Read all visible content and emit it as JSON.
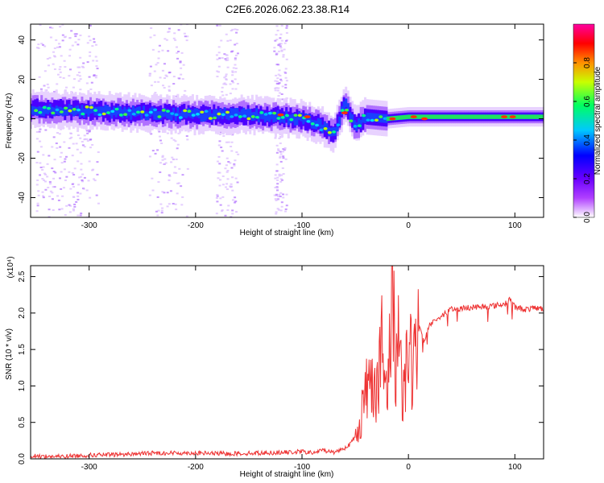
{
  "figure": {
    "title": "C2E6.2026.062.23.38.R14"
  },
  "chart_data": [
    {
      "type": "heatmap",
      "title": "",
      "xlabel": "Height of straight line (km)",
      "ylabel": "Frequency (Hz)",
      "xlim": [
        -355,
        127
      ],
      "ylim": [
        -50,
        48
      ],
      "x_ticks": [
        -300,
        -200,
        -100,
        0,
        100
      ],
      "y_ticks": [
        -40,
        -20,
        0,
        20,
        40
      ],
      "colorbar": {
        "label": "Normalized spectral amplitude",
        "range": [
          0.0,
          1.0
        ],
        "ticks": [
          0.0,
          0.2,
          0.4,
          0.6,
          0.8
        ],
        "tick_labels": [
          "0.0",
          "0.2",
          "0.4",
          "0.6",
          "0.8"
        ]
      },
      "ridge_center_hz": {
        "x": [
          -350,
          -300,
          -250,
          -200,
          -150,
          -100,
          -80,
          -70,
          -60,
          -50,
          -40,
          -20,
          0,
          20,
          60,
          100,
          127
        ],
        "y": [
          5,
          4,
          3,
          2,
          2,
          0,
          -4,
          -8,
          8,
          -4,
          1,
          0,
          1,
          1,
          1,
          1,
          1
        ]
      },
      "grid": false
    },
    {
      "type": "line",
      "title": "",
      "xlabel": "Height of straight line (km)",
      "ylabel": "SNR (10 * v/v)",
      "y_multiplier_label": "(x10⁴)",
      "xlim": [
        -355,
        127
      ],
      "ylim": [
        0,
        2.65
      ],
      "x_ticks": [
        -300,
        -200,
        -100,
        0,
        100
      ],
      "y_ticks": [
        0.0,
        0.5,
        1.0,
        1.5,
        2.0,
        2.5
      ],
      "y_tick_labels": [
        "0.0",
        "0.5",
        "1.0",
        "1.5",
        "2.0",
        "2.5"
      ],
      "series": [
        {
          "color": "#ee3333",
          "x": [
            -355,
            -330,
            -300,
            -270,
            -240,
            -200,
            -170,
            -140,
            -110,
            -100,
            -90,
            -80,
            -70,
            -60,
            -55,
            -50,
            -45,
            -40,
            -35,
            -30,
            -25,
            -20,
            -15,
            -12,
            -8,
            -5,
            0,
            5,
            10,
            15,
            20,
            25,
            30,
            40,
            60,
            80,
            90,
            95,
            100,
            110,
            120,
            127
          ],
          "y": [
            0.04,
            0.03,
            0.05,
            0.06,
            0.08,
            0.08,
            0.07,
            0.08,
            0.09,
            0.1,
            0.08,
            0.12,
            0.09,
            0.15,
            0.2,
            0.3,
            0.55,
            0.9,
            1.2,
            1.0,
            1.5,
            0.7,
            2.6,
            1.4,
            1.7,
            0.9,
            1.6,
            1.2,
            1.8,
            1.6,
            1.85,
            1.9,
            1.95,
            2.05,
            2.08,
            2.1,
            2.12,
            2.2,
            2.08,
            2.05,
            2.07,
            2.06
          ]
        }
      ],
      "grid": false
    }
  ]
}
